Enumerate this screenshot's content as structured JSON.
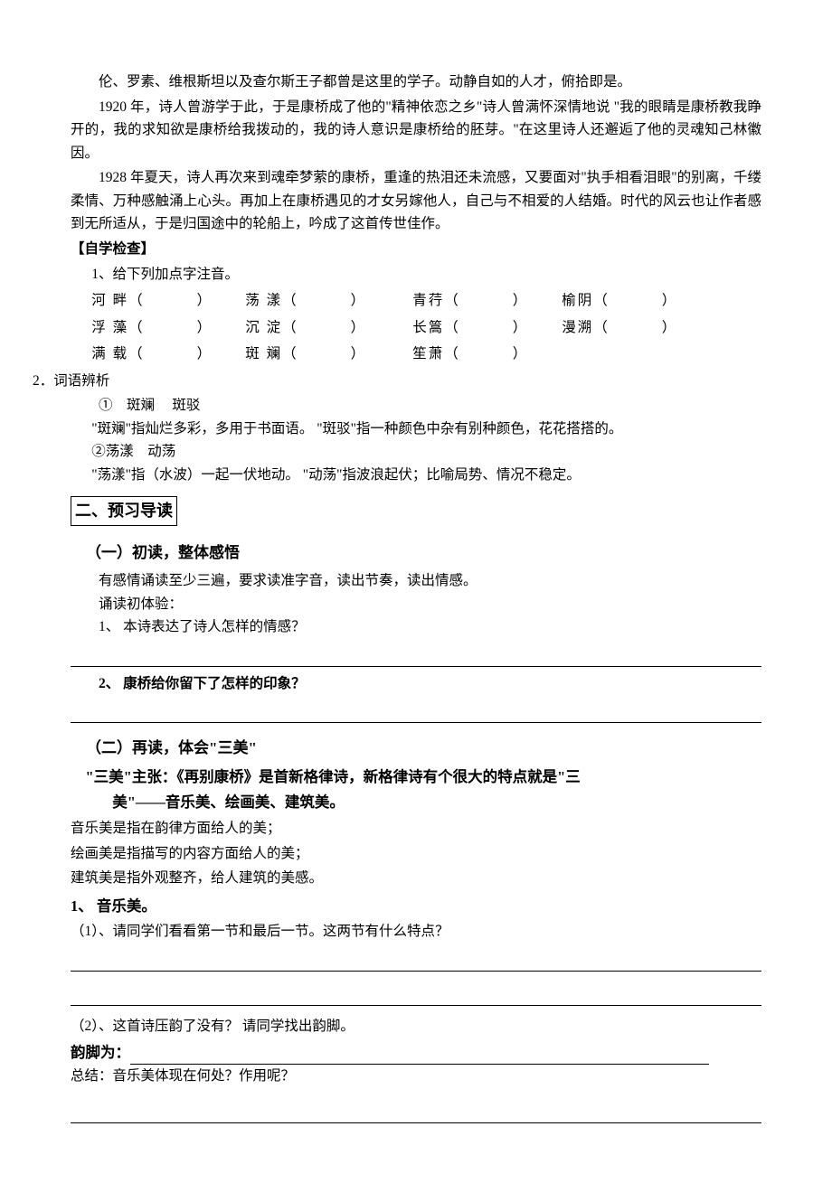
{
  "intro": {
    "p1": "伦、罗素、维根斯坦以及查尔斯王子都曾是这里的学子。动静自如的人才，俯拾即是。",
    "p2": "1920 年，诗人曾游学于此，于是康桥成了他的\"精神依恋之乡\"诗人曾满怀深情地说 \"我的眼睛是康桥教我睁开的，我的求知欲是康桥给我拨动的，我的诗人意识是康桥给的胚芽。\"在这里诗人还邂逅了他的灵魂知己林徽因。",
    "p3": "1928 年夏天，诗人再次来到魂牵梦萦的康桥，重逢的热泪还未流感，又要面对\"执手相看泪眼\"的别离，千缕柔情、万种感触涌上心头。再加上在康桥遇见的才女另嫁他人，自己与不相爱的人结婚。时代的风云也让作者感到无所适从，于是归国途中的轮船上，吟成了这首传世佳作。"
  },
  "self_check": {
    "title": "【自学检查】",
    "q1_label": "1、给下列加点字注音。",
    "phon_rows": [
      [
        {
          "word": "河 畔",
          "w": 170
        },
        {
          "word": "荡 漾",
          "w": 185
        },
        {
          "word": "青荇",
          "w": 165
        },
        {
          "word": "榆阴",
          "w": 140
        }
      ],
      [
        {
          "word": "浮 藻",
          "w": 170
        },
        {
          "word": "沉 淀",
          "w": 185
        },
        {
          "word": "长篙",
          "w": 165
        },
        {
          "word": "漫溯",
          "w": 140
        }
      ],
      [
        {
          "word": "满 载",
          "w": 170
        },
        {
          "word": "斑 斓",
          "w": 185
        },
        {
          "word": "笙萧",
          "w": 165
        }
      ]
    ],
    "q2_label": "2．词语辨析",
    "pair1_title": "①　斑斓　 斑驳",
    "pair1_body": "\"斑斓\"指灿烂多彩，多用于书面语。 \"斑驳\"指一种颜色中杂有别种颜色，花花搭搭的。",
    "pair2_title": "②荡漾　动荡",
    "pair2_body": "\"荡漾\"指（水波）一起一伏地动。 \"动荡\"指波浪起伏；比喻局势、情况不稳定。"
  },
  "section2": {
    "title": "二、预习导读",
    "sub1_title": "（一）初读，整体感悟",
    "sub1_line1": "有感情诵读至少三遍，要求读准字音，读出节奏，读出情感。",
    "sub1_line2": "诵读初体验：",
    "sub1_q1": "1、 本诗表达了诗人怎样的情感？",
    "sub1_q2": "2、 康桥给你留下了怎样的印象？",
    "sub2_title": "（二）再读，体会\"三美\"",
    "sanmei_l1": "\"三美\"主张：《再别康桥》是首新格律诗，新格律诗有个很大的特点就是\"三",
    "sanmei_l2": "美\"——音乐美、绘画美、建筑美。",
    "def1": "音乐美是指在韵律方面给人的美；",
    "def2": "绘画美是指描写的内容方面给人的美；",
    "def3": "建筑美是指外观整齐，给人建筑的美感。",
    "item1_title": "1、 音乐美。",
    "item1_q1": "（1）、请同学们看看第一节和最后一节。这两节有什么特点？",
    "item1_q2": "（2）、这首诗压韵了没有？ 请同学找出韵脚。",
    "rhyme_label": "韵脚为：",
    "summary": "总结：音乐美体现在何处？作用呢？"
  }
}
